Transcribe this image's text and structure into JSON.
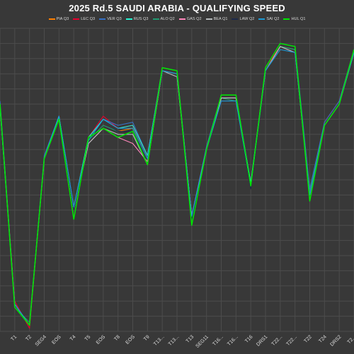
{
  "chart_data": {
    "type": "line",
    "title": "2025 Rd.5 SAUDI ARABIA - QUALIFYING SPEED",
    "xlabel": "",
    "ylabel": "",
    "grid": true,
    "legend_position": "top",
    "categories": [
      "",
      "T1",
      "T2",
      "SEG4",
      "EOS",
      "T4",
      "T5",
      "EOS",
      "T8",
      "EOS",
      "T9",
      "T13...",
      "T13...",
      "T13",
      "SEG11",
      "T16...",
      "T16...",
      "T16",
      "DRS1",
      "T22...",
      "T22...",
      "T22",
      "T24",
      "DRS2",
      "T2..."
    ],
    "ylim": [
      0,
      100
    ],
    "series": [
      {
        "name": "PIA Q3",
        "color": "#ff8000",
        "values": [
          75,
          9,
          2,
          57,
          70,
          40,
          63,
          69,
          66,
          67,
          57,
          86,
          85,
          38,
          60,
          77,
          77,
          48,
          86,
          94,
          93,
          46,
          68,
          75,
          92
        ]
      },
      {
        "name": "LEC Q3",
        "color": "#e8002d",
        "values": [
          75,
          10,
          1,
          57,
          71,
          40,
          64,
          71,
          67,
          68,
          58,
          87,
          86,
          37,
          61,
          77,
          77,
          49,
          87,
          94,
          93,
          45,
          69,
          76,
          93
        ]
      },
      {
        "name": "VER Q3",
        "color": "#3671c6",
        "values": [
          76,
          9,
          2,
          58,
          71,
          40,
          64,
          70,
          68,
          69,
          58,
          87,
          86,
          38,
          61,
          78,
          78,
          49,
          87,
          95,
          94,
          47,
          69,
          76,
          93
        ]
      },
      {
        "name": "RUS Q3",
        "color": "#27f4d2",
        "values": [
          75,
          9,
          2,
          57,
          71,
          41,
          64,
          70,
          67,
          68,
          58,
          86,
          85,
          37,
          60,
          77,
          77,
          49,
          86,
          94,
          93,
          45,
          68,
          75,
          92
        ]
      },
      {
        "name": "ALO Q2",
        "color": "#229971",
        "values": [
          74,
          8,
          3,
          57,
          70,
          41,
          63,
          68,
          66,
          66,
          57,
          86,
          85,
          37,
          60,
          77,
          76,
          48,
          86,
          94,
          93,
          46,
          68,
          75,
          92
        ]
      },
      {
        "name": "GAS Q2",
        "color": "#ff87bc",
        "values": [
          74,
          9,
          2,
          57,
          70,
          40,
          62,
          67,
          64,
          62,
          56,
          86,
          85,
          38,
          60,
          77,
          77,
          48,
          86,
          94,
          92,
          45,
          68,
          75,
          92
        ]
      },
      {
        "name": "BEA Q1",
        "color": "#b6babd",
        "values": [
          74,
          9,
          2,
          57,
          70,
          40,
          62,
          67,
          65,
          65,
          55,
          86,
          84,
          38,
          60,
          77,
          77,
          48,
          86,
          94,
          92,
          45,
          68,
          75,
          92
        ]
      },
      {
        "name": "LAW Q2",
        "color": "#1e2a4a",
        "values": [
          74,
          9,
          2,
          57,
          70,
          40,
          63,
          69,
          66,
          66,
          57,
          86,
          85,
          37,
          60,
          76,
          76,
          47,
          86,
          93,
          92,
          45,
          68,
          75,
          92
        ]
      },
      {
        "name": "SAI Q2",
        "color": "#1f9bd6",
        "values": [
          74,
          9,
          2,
          57,
          71,
          41,
          63,
          70,
          67,
          67,
          57,
          86,
          85,
          38,
          60,
          76,
          76,
          48,
          86,
          93,
          92,
          45,
          68,
          75,
          92
        ]
      },
      {
        "name": "HUL Q1",
        "color": "#00e701",
        "values": [
          75,
          8,
          2,
          57,
          70,
          37,
          64,
          67,
          64,
          66,
          55,
          87,
          86,
          35,
          60,
          78,
          78,
          48,
          87,
          95,
          94,
          43,
          68,
          75,
          93
        ]
      }
    ]
  }
}
